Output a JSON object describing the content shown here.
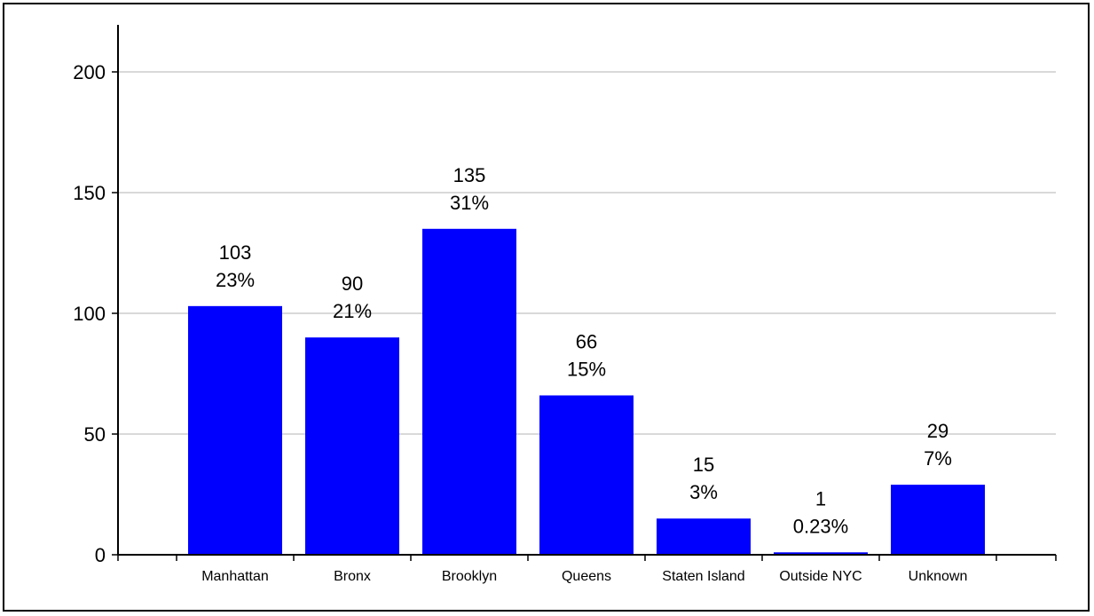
{
  "chart_data": {
    "type": "bar",
    "categories": [
      "Manhattan",
      "Bronx",
      "Brooklyn",
      "Queens",
      "Staten Island",
      "Outside NYC",
      "Unknown"
    ],
    "values": [
      103,
      90,
      135,
      66,
      15,
      1,
      29
    ],
    "percent_labels": [
      "23%",
      "21%",
      "31%",
      "15%",
      "3%",
      "0.23%",
      "7%"
    ],
    "ylim": [
      0,
      220
    ],
    "yticks": [
      0,
      50,
      100,
      150,
      200
    ],
    "grid": true,
    "bar_color": "#0000ff",
    "title": "",
    "xlabel": "",
    "ylabel": ""
  }
}
